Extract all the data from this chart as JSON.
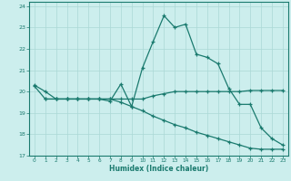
{
  "xlabel": "Humidex (Indice chaleur)",
  "bg_color": "#cceeed",
  "grid_color": "#aad8d6",
  "line_color": "#1a7a6e",
  "xlim": [
    -0.5,
    23.5
  ],
  "ylim": [
    17,
    24.2
  ],
  "xticks": [
    0,
    1,
    2,
    3,
    4,
    5,
    6,
    7,
    8,
    9,
    10,
    11,
    12,
    13,
    14,
    15,
    16,
    17,
    18,
    19,
    20,
    21,
    22,
    23
  ],
  "yticks": [
    17,
    18,
    19,
    20,
    21,
    22,
    23,
    24
  ],
  "line1_x": [
    0,
    1,
    2,
    3,
    4,
    5,
    6,
    7,
    8,
    9,
    10,
    11,
    12,
    13,
    14,
    15,
    16,
    17,
    18,
    19,
    20,
    21,
    22,
    23
  ],
  "line1_y": [
    20.3,
    20.0,
    19.65,
    19.65,
    19.65,
    19.65,
    19.65,
    19.55,
    20.35,
    19.3,
    21.1,
    22.35,
    23.55,
    23.0,
    23.15,
    21.75,
    21.6,
    21.3,
    20.15,
    19.4,
    19.4,
    18.3,
    17.8,
    17.5
  ],
  "line2_x": [
    0,
    1,
    2,
    3,
    4,
    5,
    6,
    7,
    8,
    9,
    10,
    11,
    12,
    13,
    14,
    15,
    16,
    17,
    18,
    19,
    20,
    21,
    22,
    23
  ],
  "line2_y": [
    20.25,
    19.65,
    19.65,
    19.65,
    19.65,
    19.65,
    19.65,
    19.65,
    19.65,
    19.65,
    19.65,
    19.8,
    19.9,
    20.0,
    20.0,
    20.0,
    20.0,
    20.0,
    20.0,
    20.0,
    20.05,
    20.05,
    20.05,
    20.05
  ],
  "line3_x": [
    1,
    2,
    3,
    4,
    5,
    6,
    7,
    8,
    9,
    10,
    11,
    12,
    13,
    14,
    15,
    16,
    17,
    18,
    19,
    20,
    21,
    22,
    23
  ],
  "line3_y": [
    19.65,
    19.65,
    19.65,
    19.65,
    19.65,
    19.65,
    19.65,
    19.5,
    19.3,
    19.1,
    18.85,
    18.65,
    18.45,
    18.3,
    18.1,
    17.95,
    17.8,
    17.65,
    17.5,
    17.35,
    17.3,
    17.3,
    17.3
  ]
}
